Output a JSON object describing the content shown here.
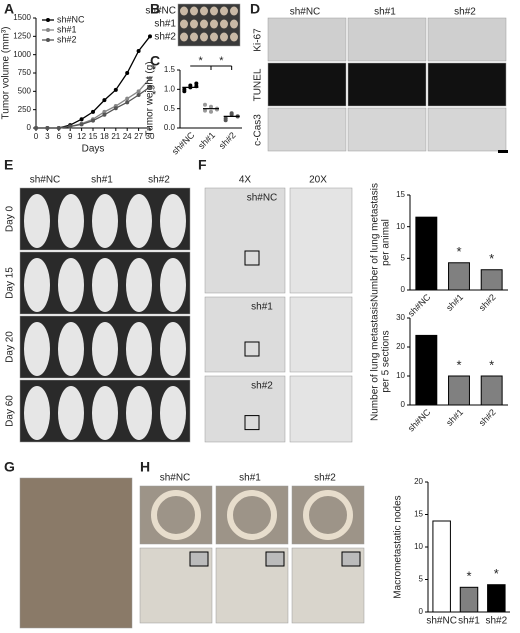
{
  "panels": {
    "letters": [
      "A",
      "B",
      "C",
      "D",
      "E",
      "F",
      "G",
      "H"
    ],
    "b_labels": [
      "sh#NC",
      "sh#1",
      "sh#2"
    ],
    "d_columns": [
      "sh#NC",
      "sh#1",
      "sh#2"
    ],
    "d_rows": [
      "Ki-67",
      "TUNEL",
      "c-Cas3"
    ],
    "e_columns": [
      "sh#NC",
      "sh#1",
      "sh#2"
    ],
    "e_rows": [
      "Day  0",
      "Day  15",
      "Day  20",
      "Day  60"
    ],
    "f_columns": [
      "4X",
      "20X"
    ],
    "f_labels": [
      "sh#NC",
      "sh#1",
      "sh#2"
    ],
    "h_columns": [
      "sh#NC",
      "sh#1",
      "sh#2"
    ]
  },
  "chart_data": [
    {
      "type": "line",
      "xlabel": "Days",
      "ylabel": [
        "Tumor volume (mm³)"
      ],
      "x": [
        0,
        3,
        6,
        9,
        12,
        15,
        18,
        21,
        24,
        27,
        30
      ],
      "xlim": [
        0,
        30
      ],
      "xticks": [
        0,
        3,
        6,
        9,
        12,
        15,
        18,
        21,
        24,
        27,
        30
      ],
      "ylim": [
        0,
        1500
      ],
      "yticks": [
        0,
        250,
        500,
        750,
        1000,
        1250,
        1500
      ],
      "series": [
        {
          "name": "sh#NC",
          "color": "#000000",
          "values": [
            0,
            0,
            0,
            40,
            120,
            220,
            380,
            520,
            750,
            1050,
            1250
          ]
        },
        {
          "name": "sh#1",
          "color": "#888888",
          "values": [
            0,
            0,
            0,
            20,
            60,
            120,
            220,
            300,
            400,
            500,
            680
          ]
        },
        {
          "name": "sh#2",
          "color": "#555555",
          "values": [
            0,
            0,
            0,
            20,
            50,
            100,
            180,
            270,
            350,
            450,
            560
          ]
        }
      ],
      "annotations": [
        "*",
        "*"
      ]
    },
    {
      "type": "dot",
      "ylabel": [
        "Tumor weight (g)"
      ],
      "categories": [
        "sh#NC",
        "sh#1",
        "sh#2"
      ],
      "colors": [
        "#000000",
        "#999999",
        "#555555"
      ],
      "values": [
        1.05,
        0.5,
        0.3
      ],
      "points": [
        [
          1.0,
          1.1,
          1.15,
          0.95,
          1.05,
          1.08
        ],
        [
          0.45,
          0.55,
          0.5,
          0.6,
          0.42,
          0.48
        ],
        [
          0.25,
          0.35,
          0.3,
          0.2,
          0.38,
          0.3
        ]
      ],
      "ylim": [
        0,
        1.5
      ],
      "yticks": [
        {
          "value": 0,
          "label": "0.0"
        },
        {
          "value": 0.5,
          "label": "0.5"
        },
        {
          "value": 1,
          "label": "1.0"
        },
        {
          "value": 1.5,
          "label": "1.5"
        }
      ],
      "annotations": [
        "*",
        "*"
      ]
    },
    {
      "type": "bar",
      "ylabel": [
        "Number of lung metastasis",
        "per animal"
      ],
      "categories": [
        "sh#NC",
        "sh#1",
        "sh#2"
      ],
      "colors": [
        "#000000",
        "#808080",
        "#808080"
      ],
      "values": [
        11.5,
        4.3,
        3.2
      ],
      "ylim": [
        0,
        15
      ],
      "yticks": [
        0,
        5,
        10,
        15
      ],
      "annotations": [
        "*",
        "*"
      ]
    },
    {
      "type": "bar",
      "ylabel": [
        "Number of lung metastasis",
        "per 5 sections"
      ],
      "categories": [
        "sh#NC",
        "sh#1",
        "sh#2"
      ],
      "colors": [
        "#000000",
        "#808080",
        "#808080"
      ],
      "values": [
        24,
        10,
        10
      ],
      "ylim": [
        0,
        30
      ],
      "yticks": [
        0,
        10,
        20,
        30
      ],
      "annotations": [
        "*",
        "*"
      ]
    },
    {
      "type": "bar",
      "ylabel": [
        "Macrometastatic nodes"
      ],
      "categories": [
        "sh#NC",
        "sh#1",
        "sh#2"
      ],
      "colors": [
        "#ffffff",
        "#808080",
        "#000000"
      ],
      "values": [
        14,
        3.8,
        4.2
      ],
      "ylim": [
        0,
        20
      ],
      "yticks": [
        0,
        5,
        10,
        15,
        20
      ],
      "annotations": [
        "*",
        "*"
      ]
    }
  ]
}
